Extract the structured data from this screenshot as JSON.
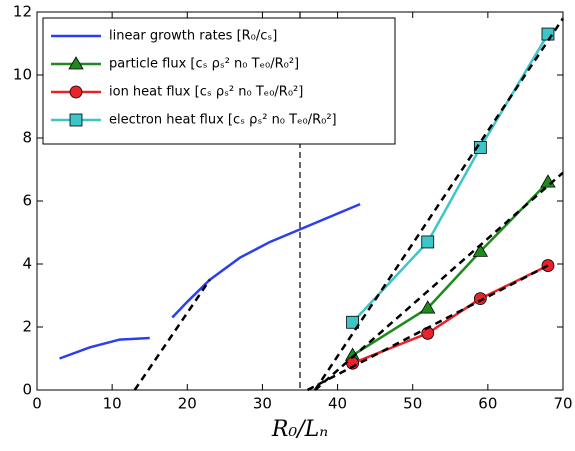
{
  "chart_data": {
    "type": "line",
    "x_label": "R₀/Lₙ",
    "xlim": [
      0,
      70
    ],
    "xticks": [
      0,
      10,
      20,
      30,
      40,
      50,
      60,
      70
    ],
    "ylim": [
      0,
      12
    ],
    "yticks": [
      0,
      2,
      4,
      6,
      8,
      10,
      12
    ],
    "legend": "upper left",
    "series": [
      {
        "name": "linear growth rates [R₀/cₛ]",
        "color": "#2b3ff0",
        "marker": "none",
        "x": [
          3,
          7,
          11,
          15,
          null,
          18,
          20,
          23,
          27,
          31,
          35,
          39,
          43
        ],
        "values": [
          1.0,
          1.35,
          1.6,
          1.65,
          null,
          2.3,
          2.8,
          3.5,
          4.2,
          4.7,
          5.1,
          5.5,
          5.9
        ]
      },
      {
        "name": "particle flux [cₛ ρₛ² n₀ Tₑ₀/R₀²]",
        "color": "#1e8a1e",
        "marker": "triangle",
        "x": [
          42,
          52,
          59,
          68
        ],
        "values": [
          1.1,
          2.6,
          4.4,
          6.6
        ]
      },
      {
        "name": "ion heat flux [cₛ ρₛ² n₀ Tₑ₀/R₀²]",
        "color": "#e8232a",
        "marker": "circle",
        "x": [
          42,
          52,
          59,
          68
        ],
        "values": [
          0.85,
          1.8,
          2.9,
          3.95
        ]
      },
      {
        "name": "electron heat flux [cₛ ρₛ² n₀ Tₑ₀/R₀²]",
        "color": "#3cc6c8",
        "marker": "square",
        "x": [
          42,
          52,
          59,
          68
        ],
        "values": [
          2.15,
          4.7,
          7.7,
          11.3
        ]
      }
    ],
    "fit_lines": [
      {
        "color": "#000000",
        "x": [
          13,
          23
        ],
        "values": [
          0,
          3.5
        ]
      },
      {
        "color": "#000000",
        "x": [
          37,
          70
        ],
        "values": [
          0,
          6.9
        ]
      },
      {
        "color": "#000000",
        "x": [
          36,
          68
        ],
        "values": [
          0,
          3.95
        ]
      },
      {
        "color": "#000000",
        "x": [
          37,
          70
        ],
        "values": [
          0,
          11.8
        ]
      }
    ],
    "vlines": [
      35
    ]
  }
}
